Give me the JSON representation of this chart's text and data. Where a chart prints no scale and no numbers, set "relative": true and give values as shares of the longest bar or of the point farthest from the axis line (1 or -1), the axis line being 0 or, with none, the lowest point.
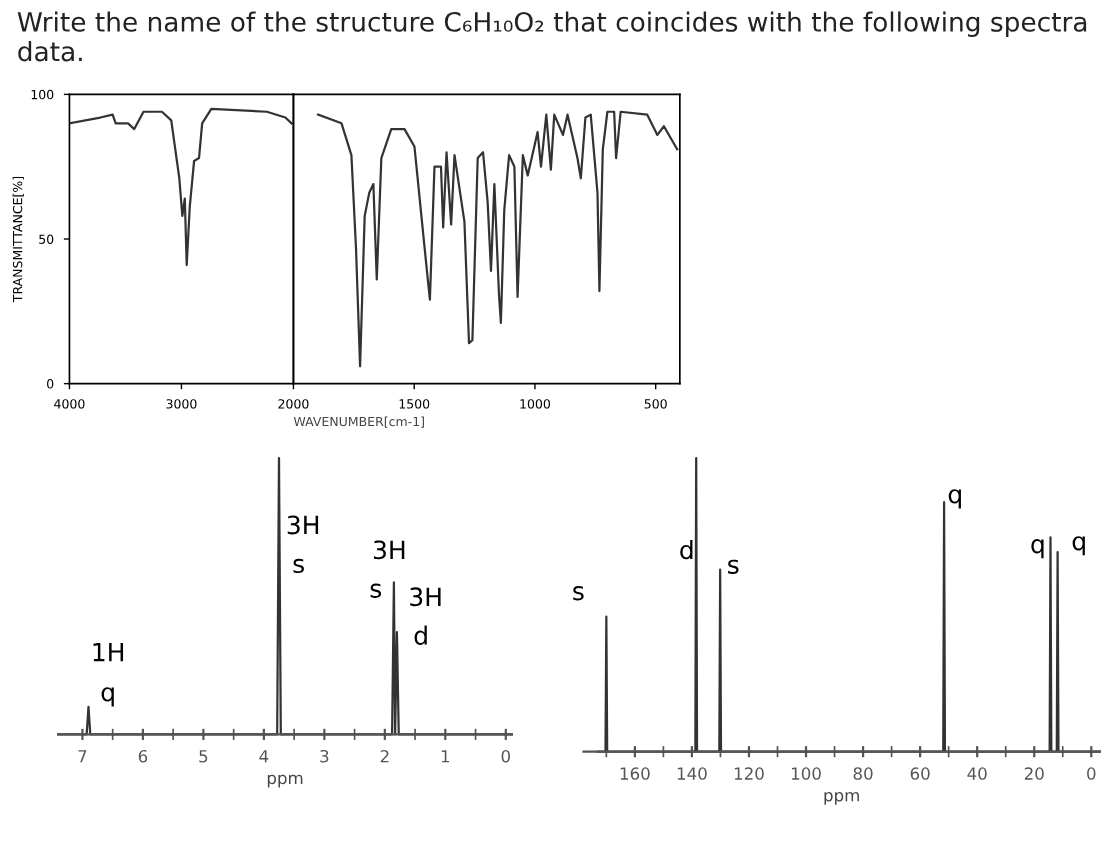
{
  "chart_data": [
    {
      "type": "line",
      "title": "Write the name of the structure C₆H₁₀O₂ that coincides with the following spectra data.",
      "ylabel": "TRANSMITTANCE[%]",
      "color": "#333333",
      "xlim": [
        4000,
        2000
      ],
      "xticks": [
        4000,
        3000,
        2000
      ],
      "ylim": [
        0,
        100
      ],
      "yticks": [
        0,
        50,
        100
      ],
      "x": [
        4000,
        3725,
        3614,
        3587,
        3477,
        3421,
        3339,
        3174,
        3091,
        3019,
        2992,
        2970,
        2953,
        2926,
        2887,
        2843,
        2815,
        2733,
        2237,
        2072,
        2017
      ],
      "values": [
        90,
        92,
        93,
        90,
        90,
        88,
        94,
        94,
        91,
        71,
        58,
        64,
        41,
        61,
        77,
        78,
        90,
        95,
        94,
        92,
        90
      ]
    },
    {
      "type": "line",
      "xlabel": "WAVENUMBER[cm-1]",
      "color": "#333333",
      "xlim": [
        2000,
        400
      ],
      "xticks": [
        1500,
        1000,
        500
      ],
      "ylim": [
        0,
        100
      ],
      "tick_labels": "x",
      "x": [
        1898,
        1801,
        1760,
        1741,
        1724,
        1705,
        1686,
        1669,
        1655,
        1636,
        1595,
        1540,
        1499,
        1457,
        1435,
        1416,
        1389,
        1380,
        1366,
        1347,
        1333,
        1292,
        1273,
        1259,
        1237,
        1215,
        1196,
        1182,
        1168,
        1149,
        1141,
        1127,
        1107,
        1085,
        1072,
        1050,
        1030,
        1008,
        989,
        975,
        953,
        934,
        920,
        884,
        865,
        824,
        810,
        791,
        769,
        741,
        733,
        719,
        700,
        672,
        664,
        645,
        535,
        493,
        466,
        411
      ],
      "values": [
        93,
        90,
        79,
        47,
        6,
        58,
        66,
        69,
        36,
        78,
        88,
        88,
        82,
        47,
        29,
        75,
        75,
        54,
        80,
        55,
        79,
        56,
        14,
        15,
        78,
        80,
        63,
        39,
        69,
        31,
        21,
        60,
        79,
        75,
        30,
        79,
        72,
        80,
        87,
        75,
        93,
        74,
        93,
        86,
        93,
        78,
        71,
        92,
        93,
        66,
        32,
        81,
        94,
        94,
        78,
        94,
        93,
        86,
        89,
        81
      ]
    },
    {
      "type": "line",
      "relative": true,
      "xlabel": "ppm",
      "color": "#333333",
      "xlim": [
        7.4,
        -0.1
      ],
      "xticks": [
        7,
        {
          "value": 6.5,
          "label": null
        },
        6,
        {
          "value": 5.5,
          "label": null
        },
        5,
        {
          "value": 4.5,
          "label": null
        },
        4,
        {
          "value": 3.5,
          "label": null
        },
        3,
        {
          "value": 2.5,
          "label": null
        },
        2,
        {
          "value": 1.5,
          "label": null
        },
        1,
        {
          "value": 0.5,
          "label": null
        },
        0
      ],
      "x": [
        7.4,
        6.93,
        6.9,
        6.87,
        3.78,
        3.75,
        3.72,
        1.88,
        1.85,
        1.83,
        1.8,
        1.77,
        -0.1
      ],
      "values": [
        0,
        0,
        0.1,
        0,
        0,
        1,
        0,
        0,
        0.55,
        0,
        0.37,
        0,
        0
      ],
      "annotations": [
        "1H",
        "q",
        "3H",
        "s",
        "3H",
        "s",
        "3H",
        "d"
      ]
    },
    {
      "type": "line",
      "relative": true,
      "xlabel": "ppm",
      "color": "#333333",
      "xlim": [
        178,
        -3
      ],
      "xticks": [
        {
          "value": 170,
          "label": null
        },
        160,
        {
          "value": 150,
          "label": null
        },
        140,
        {
          "value": 130,
          "label": null
        },
        120,
        {
          "value": 110,
          "label": null
        },
        100,
        {
          "value": 90,
          "label": null
        },
        80,
        {
          "value": 70,
          "label": null
        },
        60,
        {
          "value": 50,
          "label": null
        },
        40,
        {
          "value": 30,
          "label": null
        },
        20,
        {
          "value": 10,
          "label": null
        },
        0
      ],
      "x": [
        173,
        170.3,
        170,
        169.7,
        138.8,
        138.5,
        138.2,
        130.4,
        130.1,
        129.8,
        51.9,
        51.6,
        51.3,
        14.6,
        14.3,
        14.0,
        12.1,
        11.8,
        11.5,
        -3
      ],
      "values": [
        0,
        0,
        0.46,
        0,
        0,
        1,
        0,
        0,
        0.62,
        0,
        0,
        0.85,
        0,
        0,
        0.73,
        0,
        0,
        0.68,
        0,
        0
      ],
      "annotations": [
        "s",
        "d",
        "s",
        "q",
        "q",
        "q"
      ]
    }
  ]
}
